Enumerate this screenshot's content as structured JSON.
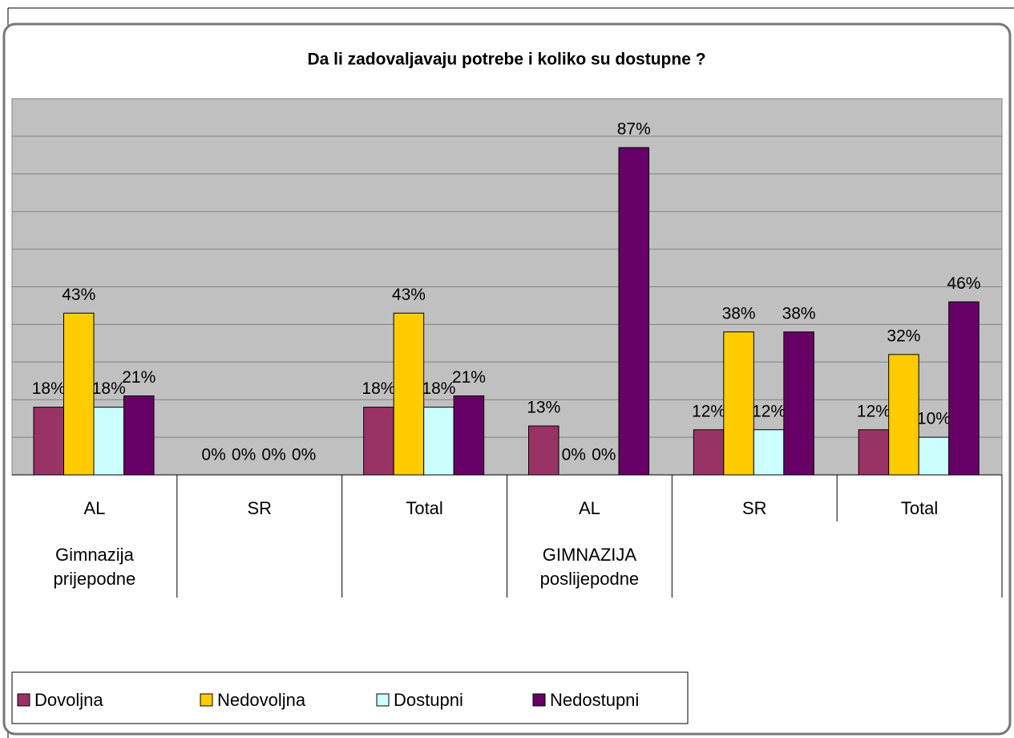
{
  "chart_data": {
    "type": "bar",
    "title": "Da li zadovaljavaju potrebe i koliko su dostupne ?",
    "categories": [
      "AL",
      "SR",
      "Total",
      "AL",
      "SR",
      "Total"
    ],
    "category_groups": [
      "Gimnazija prijepodne",
      null,
      null,
      "GIMNAZIJA poslijepodne",
      null,
      null
    ],
    "series": [
      {
        "name": "Dovoljna",
        "color": "#993366",
        "values": [
          18,
          0,
          18,
          13,
          12,
          12
        ],
        "value_labels": [
          "18%",
          "0%",
          "18%",
          "13%",
          "12%",
          "12%"
        ]
      },
      {
        "name": "Nedovoljna",
        "color": "#ffcc00",
        "values": [
          43,
          0,
          43,
          0,
          38,
          32
        ],
        "value_labels": [
          "43%",
          "0%",
          "43%",
          "0%",
          "38%",
          "32%"
        ]
      },
      {
        "name": "Dostupni",
        "color": "#ccffff",
        "values": [
          18,
          0,
          18,
          0,
          12,
          10
        ],
        "value_labels": [
          "18%",
          "0%",
          "18%",
          "0%",
          "12%",
          "10%"
        ]
      },
      {
        "name": "Nedostupni",
        "color": "#660066",
        "values": [
          21,
          0,
          21,
          87,
          38,
          46
        ],
        "value_labels": [
          "21%",
          "0%",
          "21%",
          "87%",
          "38%",
          "46%"
        ]
      }
    ],
    "ylim": [
      0,
      100
    ],
    "yticks": [
      0,
      10,
      20,
      30,
      40,
      50,
      60,
      70,
      80,
      90,
      100
    ],
    "grid": true,
    "plot_background": "#c0c0c0",
    "legend": "bottom-left"
  }
}
